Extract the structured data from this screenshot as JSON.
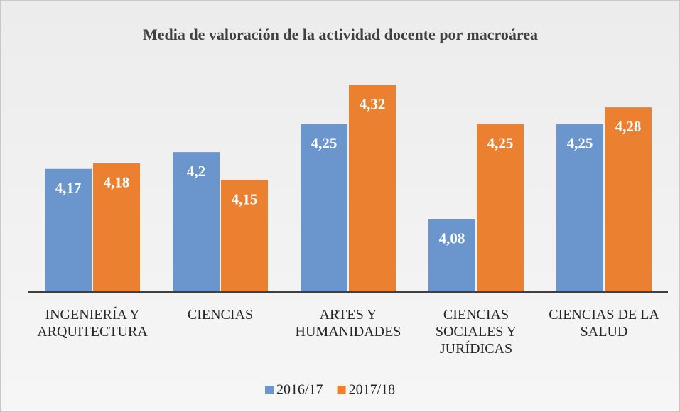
{
  "chart_data": {
    "type": "bar",
    "title": "Media de valoración de la actividad docente por macroárea",
    "categories": [
      "INGENIERÍA Y ARQUITECTURA",
      "CIENCIAS",
      "ARTES Y HUMANIDADES",
      "CIENCIAS SOCIALES Y JURÍDICAS",
      "CIENCIAS DE LA SALUD"
    ],
    "series": [
      {
        "name": "2016/17",
        "color": "#6b95cd",
        "values": [
          4.17,
          4.2,
          4.25,
          4.08,
          4.25
        ],
        "value_labels": [
          "4,17",
          "4,2",
          "4,25",
          "4,08",
          "4,25"
        ]
      },
      {
        "name": "2017/18",
        "color": "#eb8130",
        "values": [
          4.18,
          4.15,
          4.32,
          4.25,
          4.28
        ],
        "value_labels": [
          "4,18",
          "4,15",
          "4,32",
          "4,25",
          "4,28"
        ]
      }
    ],
    "ylim": [
      3.95,
      4.35
    ],
    "legend": "bottom"
  }
}
